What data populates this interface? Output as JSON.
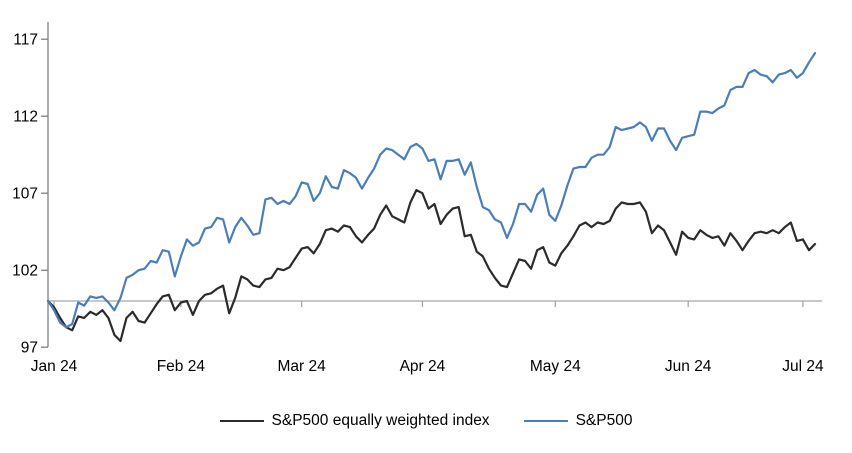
{
  "chart_data": {
    "type": "line",
    "title": "",
    "x_axis": {
      "labels": [
        {
          "label": "Jan 24",
          "index": 1
        },
        {
          "label": "Feb 24",
          "index": 22
        },
        {
          "label": "Mar 24",
          "index": 42
        },
        {
          "label": "Apr 24",
          "index": 62
        },
        {
          "label": "May 24",
          "index": 84
        },
        {
          "label": "Jun 24",
          "index": 106
        },
        {
          "label": "Jul 24",
          "index": 125
        }
      ]
    },
    "y_axis": {
      "ticks": [
        117,
        112,
        107,
        102,
        97
      ],
      "min": 97,
      "max": 117,
      "baseline": 100
    },
    "grid": "off",
    "legend_position": "bottom",
    "series": [
      {
        "name": "S&P500 equally weighted index",
        "color": "#2B2B2B",
        "values": [
          100.0,
          99.6,
          98.9,
          98.3,
          98.1,
          99.0,
          98.9,
          99.3,
          99.1,
          99.4,
          98.9,
          97.8,
          97.4,
          98.9,
          99.3,
          98.7,
          98.6,
          99.2,
          99.8,
          100.3,
          100.4,
          99.4,
          99.9,
          100.0,
          99.1,
          100.0,
          100.4,
          100.5,
          100.8,
          101.0,
          99.2,
          100.2,
          101.6,
          101.4,
          101.0,
          100.9,
          101.4,
          101.5,
          102.1,
          102.0,
          102.2,
          102.8,
          103.4,
          103.5,
          103.1,
          103.7,
          104.6,
          104.7,
          104.5,
          104.9,
          104.8,
          104.2,
          103.8,
          104.3,
          104.7,
          105.6,
          106.2,
          105.5,
          105.3,
          105.1,
          106.4,
          107.2,
          107.0,
          106.0,
          106.3,
          105.0,
          105.6,
          106.0,
          106.1,
          104.2,
          104.3,
          103.2,
          102.9,
          102.1,
          101.5,
          101.0,
          100.9,
          101.8,
          102.7,
          102.6,
          102.1,
          103.3,
          103.5,
          102.5,
          102.3,
          103.1,
          103.6,
          104.2,
          104.9,
          105.1,
          104.8,
          105.1,
          105.0,
          105.2,
          106.0,
          106.4,
          106.3,
          106.3,
          106.4,
          105.8,
          104.4,
          104.9,
          104.6,
          103.8,
          103.0,
          104.5,
          104.1,
          104.0,
          104.6,
          104.3,
          104.1,
          104.2,
          103.6,
          104.4,
          103.9,
          103.3,
          103.9,
          104.4,
          104.5,
          104.4,
          104.6,
          104.4,
          104.8,
          105.1,
          103.9,
          104.0,
          103.3,
          103.7
        ]
      },
      {
        "name": "S&P500",
        "color": "#4A7EBB",
        "values": [
          100.0,
          99.4,
          98.6,
          98.3,
          98.5,
          99.9,
          99.7,
          100.3,
          100.2,
          100.3,
          99.9,
          99.4,
          100.2,
          101.5,
          101.7,
          102.0,
          102.1,
          102.6,
          102.5,
          103.3,
          103.2,
          101.6,
          102.9,
          104.0,
          103.6,
          103.8,
          104.7,
          104.8,
          105.4,
          105.3,
          103.8,
          104.8,
          105.4,
          104.9,
          104.3,
          104.4,
          106.6,
          106.7,
          106.3,
          106.5,
          106.3,
          106.8,
          107.7,
          107.6,
          106.5,
          107.0,
          108.1,
          107.4,
          107.3,
          108.5,
          108.3,
          108.0,
          107.3,
          108.0,
          108.6,
          109.5,
          109.9,
          109.8,
          109.5,
          109.2,
          110.0,
          110.2,
          109.9,
          109.1,
          109.2,
          107.9,
          109.1,
          109.1,
          109.2,
          108.2,
          109.0,
          107.4,
          106.1,
          105.9,
          105.3,
          105.1,
          104.1,
          105.0,
          106.3,
          106.3,
          105.8,
          106.9,
          107.3,
          105.6,
          105.2,
          106.2,
          107.5,
          108.6,
          108.7,
          108.7,
          109.3,
          109.5,
          109.5,
          110.0,
          111.3,
          111.1,
          111.2,
          111.3,
          111.6,
          111.3,
          110.4,
          111.2,
          111.2,
          110.4,
          109.8,
          110.6,
          110.7,
          110.8,
          112.3,
          112.3,
          112.2,
          112.5,
          112.7,
          113.7,
          113.9,
          113.9,
          114.8,
          115.0,
          114.7,
          114.6,
          114.2,
          114.7,
          114.8,
          115.0,
          114.5,
          114.8,
          115.5,
          116.1
        ]
      }
    ],
    "axis_colors": {
      "x_axis": "#A6A6A6",
      "y_axis": "#7F7F7F",
      "tick_label": "#000000"
    }
  },
  "legend": {
    "equal_weight_label": "S&P500 equally weighted index",
    "sp500_label": "S&P500"
  }
}
